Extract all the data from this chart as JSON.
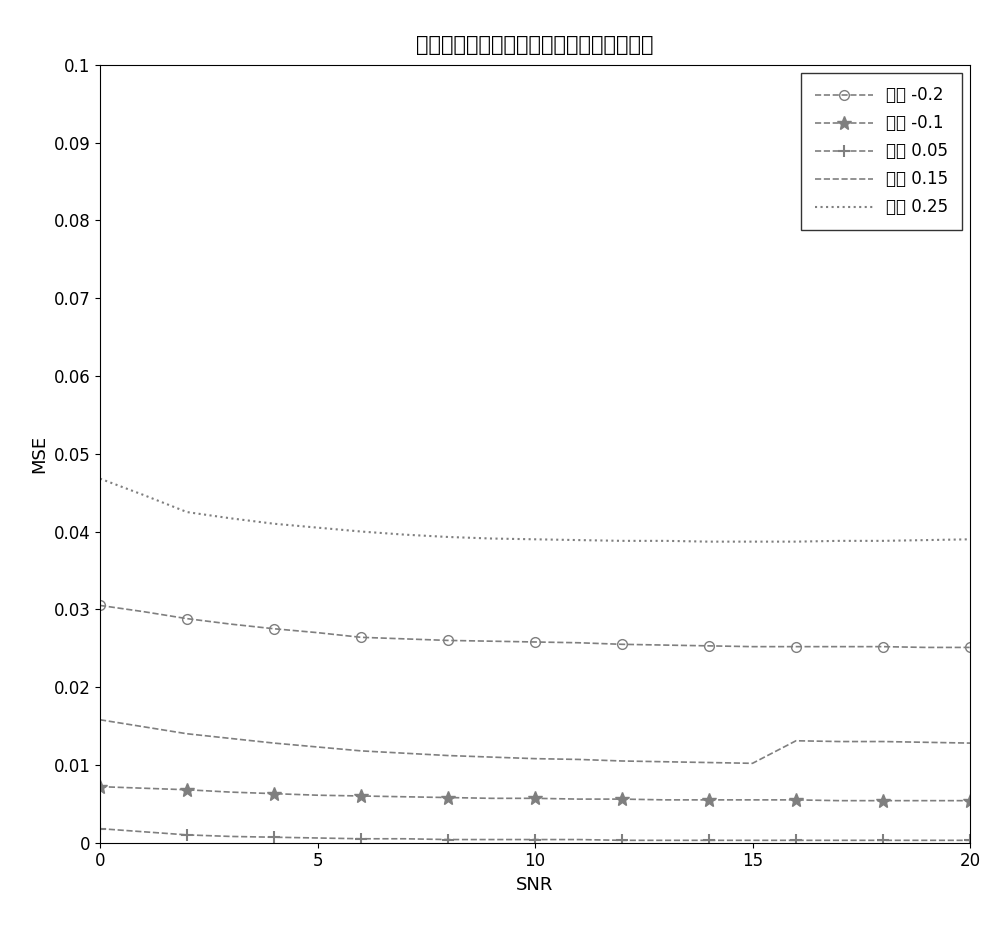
{
  "title": "不同信噪比下的归一化频偏估计的均方误差",
  "xlabel": "SNR",
  "ylabel": "MSE",
  "xlim": [
    0,
    20
  ],
  "ylim": [
    0,
    0.1
  ],
  "snr": [
    0,
    1,
    2,
    3,
    4,
    5,
    6,
    7,
    8,
    9,
    10,
    11,
    12,
    13,
    14,
    15,
    16,
    17,
    18,
    19,
    20
  ],
  "series": [
    {
      "label": "频偏 -0.2",
      "color": "#7f7f7f",
      "linestyle": "dashed",
      "marker": "o",
      "markersize": 7,
      "linewidth": 1.2,
      "markevery": 2,
      "values": [
        0.0305,
        0.0297,
        0.0288,
        0.0281,
        0.0275,
        0.027,
        0.0264,
        0.0262,
        0.026,
        0.0259,
        0.0258,
        0.0257,
        0.0255,
        0.0254,
        0.0253,
        0.0252,
        0.0252,
        0.0252,
        0.0252,
        0.0251,
        0.0251
      ]
    },
    {
      "label": "频偏 -0.1",
      "color": "#7f7f7f",
      "linestyle": "dashed",
      "marker": "*",
      "markersize": 10,
      "linewidth": 1.2,
      "markevery": 2,
      "values": [
        0.0072,
        0.007,
        0.0068,
        0.0065,
        0.0063,
        0.0061,
        0.006,
        0.0059,
        0.0058,
        0.0057,
        0.0057,
        0.0056,
        0.0056,
        0.0055,
        0.0055,
        0.0055,
        0.0055,
        0.0054,
        0.0054,
        0.0054,
        0.0054
      ]
    },
    {
      "label": "频偏 0.05",
      "color": "#7f7f7f",
      "linestyle": "dashed",
      "marker": "+",
      "markersize": 9,
      "linewidth": 1.2,
      "markevery": 2,
      "values": [
        0.0018,
        0.0014,
        0.001,
        0.0008,
        0.0007,
        0.0006,
        0.0005,
        0.0005,
        0.0004,
        0.0004,
        0.0004,
        0.0004,
        0.0003,
        0.0003,
        0.0003,
        0.0003,
        0.0003,
        0.0003,
        0.0003,
        0.0003,
        0.0003
      ]
    },
    {
      "label": "频偏 0.15",
      "color": "#7f7f7f",
      "linestyle": "dashed",
      "marker": null,
      "markersize": 0,
      "linewidth": 1.2,
      "markevery": 2,
      "values": [
        0.0158,
        0.0149,
        0.014,
        0.0134,
        0.0128,
        0.0123,
        0.0118,
        0.0115,
        0.0112,
        0.011,
        0.0108,
        0.0107,
        0.0105,
        0.0104,
        0.0103,
        0.0102,
        0.0131,
        0.013,
        0.013,
        0.0129,
        0.0128
      ]
    },
    {
      "label": "频偏 0.25",
      "color": "#7f7f7f",
      "linestyle": "dotted",
      "marker": null,
      "markersize": 0,
      "linewidth": 1.5,
      "markevery": 2,
      "values": [
        0.0468,
        0.0447,
        0.0425,
        0.0417,
        0.041,
        0.0405,
        0.04,
        0.0396,
        0.0393,
        0.0391,
        0.039,
        0.0389,
        0.0388,
        0.0388,
        0.0387,
        0.0387,
        0.0387,
        0.0388,
        0.0388,
        0.0389,
        0.039
      ]
    }
  ],
  "xticks": [
    0,
    5,
    10,
    15,
    20
  ],
  "yticks": [
    0,
    0.01,
    0.02,
    0.03,
    0.04,
    0.05,
    0.06,
    0.07,
    0.08,
    0.09,
    0.1
  ],
  "title_fontsize": 15,
  "label_fontsize": 13,
  "tick_fontsize": 12,
  "legend_fontsize": 12
}
